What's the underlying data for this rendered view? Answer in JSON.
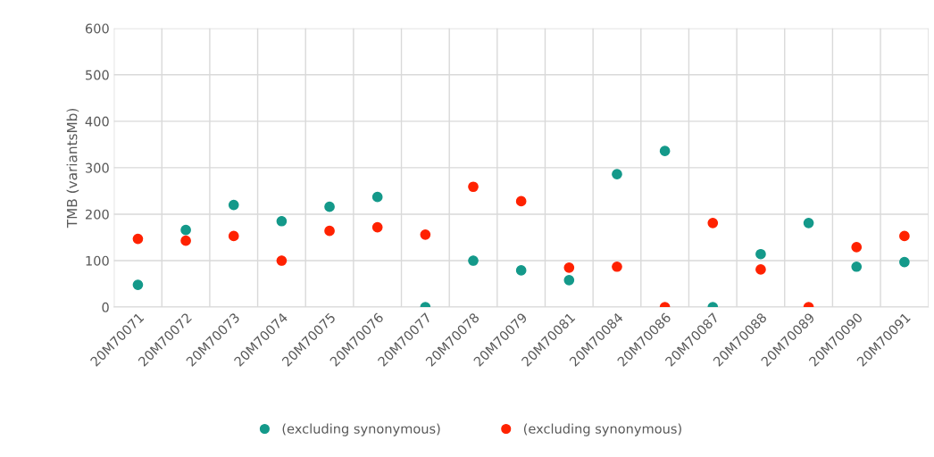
{
  "chart_data": {
    "type": "scatter",
    "ylabel": "TMB (variantsMb)",
    "categories": [
      "20M70071",
      "20M70072",
      "20M70073",
      "20M70074",
      "20M70075",
      "20M70076",
      "20M70077",
      "20M70078",
      "20M70079",
      "20M70081",
      "20M70084",
      "20M70086",
      "20M70087",
      "20M70088",
      "20M70089",
      "20M70090",
      "20M70091"
    ],
    "series": [
      {
        "name": "(excluding synonymous)",
        "color": "#14998a",
        "values": [
          48,
          166,
          220,
          185,
          216,
          237,
          0,
          100,
          79,
          58,
          286,
          336,
          0,
          114,
          181,
          87,
          97
        ]
      },
      {
        "name": "(excluding synonymous)",
        "color": "#ff2200",
        "values": [
          147,
          143,
          153,
          100,
          164,
          172,
          156,
          259,
          228,
          85,
          87,
          0,
          181,
          81,
          0,
          129,
          153
        ]
      }
    ],
    "ylim": [
      0,
      600
    ],
    "yticks": [
      0,
      100,
      200,
      300,
      400,
      500,
      600
    ],
    "grid": true,
    "legend": "bottom",
    "marker": "circle"
  }
}
